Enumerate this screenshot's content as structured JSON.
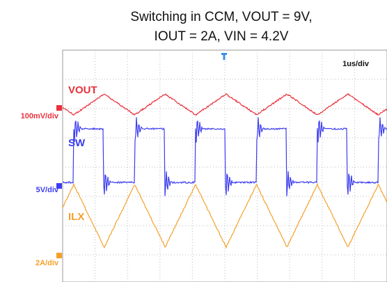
{
  "title_lines": [
    "Switching in CCM, VOUT = 9V,",
    "IOUT = 2A, VIN = 4.2V"
  ],
  "timebase": "1us/div",
  "channels": [
    {
      "name": "VOUT",
      "scale": "100mV/div",
      "color": "#e8323c"
    },
    {
      "name": "SW",
      "scale": "5V/div",
      "color": "#3c3cf0"
    },
    {
      "name": "ILX",
      "scale": "2A/div",
      "color": "#f5a02a"
    }
  ]
}
